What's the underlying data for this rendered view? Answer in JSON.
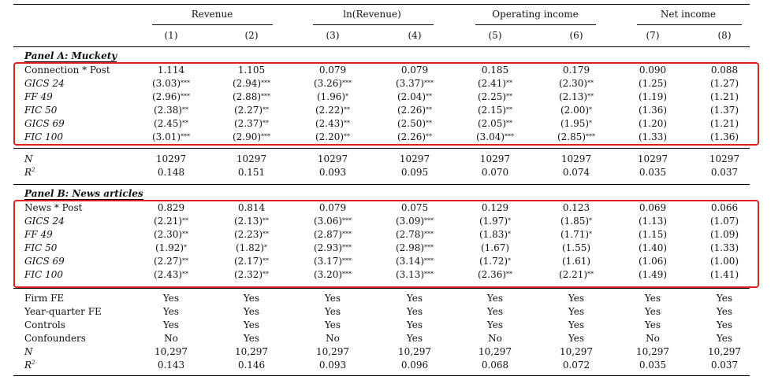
{
  "groups": [
    "Revenue",
    "ln(Revenue)",
    "Operating income",
    "Net income"
  ],
  "col_numbers": [
    "(1)",
    "(2)",
    "(3)",
    "(4)",
    "(5)",
    "(6)",
    "(7)",
    "(8)"
  ],
  "panel_a": {
    "title": "Panel A: Muckety",
    "rows": [
      {
        "label": "Connection * Post",
        "italic": false,
        "cells": [
          "1.114",
          "1.105",
          "0.079",
          "0.079",
          "0.185",
          "0.179",
          "0.090",
          "0.088"
        ],
        "stars": [
          "",
          "",
          "",
          "",
          "",
          "",
          "",
          ""
        ]
      },
      {
        "label": "GICS 24",
        "italic": true,
        "cells": [
          "(3.03)",
          "(2.94)",
          "(3.26)",
          "(3.37)",
          "(2.41)",
          "(2.30)",
          "(1.25)",
          "(1.27)"
        ],
        "stars": [
          "***",
          "***",
          "***",
          "***",
          "**",
          "**",
          "",
          ""
        ]
      },
      {
        "label": "FF 49",
        "italic": true,
        "cells": [
          "(2.96)",
          "(2.88)",
          "(1.96)",
          "(2.04)",
          "(2.25)",
          "(2.13)",
          "(1.19)",
          "(1.21)"
        ],
        "stars": [
          "***",
          "***",
          "*",
          "**",
          "**",
          "**",
          "",
          ""
        ]
      },
      {
        "label": "FIC 50",
        "italic": true,
        "cells": [
          "(2.38)",
          "(2.27)",
          "(2.22)",
          "(2.26)",
          "(2.15)",
          "(2.00)",
          "(1.36)",
          "(1.37)"
        ],
        "stars": [
          "**",
          "**",
          "**",
          "**",
          "**",
          "*",
          "",
          ""
        ]
      },
      {
        "label": "GICS 69",
        "italic": true,
        "cells": [
          "(2.45)",
          "(2.37)",
          "(2.43)",
          "(2.50)",
          "(2.05)",
          "(1.95)",
          "(1.20)",
          "(1.21)"
        ],
        "stars": [
          "**",
          "**",
          "**",
          "**",
          "**",
          "*",
          "",
          ""
        ]
      },
      {
        "label": "FIC 100",
        "italic": true,
        "cells": [
          "(3.01)",
          "(2.90)",
          "(2.20)",
          "(2.26)",
          "(3.04)",
          "(2.85)",
          "(1.33)",
          "(1.36)"
        ],
        "stars": [
          "***",
          "***",
          "**",
          "**",
          "***",
          "***",
          "",
          ""
        ]
      }
    ],
    "n_label": "N",
    "n_values": [
      "10297",
      "10297",
      "10297",
      "10297",
      "10297",
      "10297",
      "10297",
      "10297"
    ],
    "r2_label": "R",
    "r2_sup": "2",
    "r2_values": [
      "0.148",
      "0.151",
      "0.093",
      "0.095",
      "0.070",
      "0.074",
      "0.035",
      "0.037"
    ]
  },
  "panel_b": {
    "title": "Panel B: News articles",
    "rows": [
      {
        "label": "News * Post",
        "italic": false,
        "cells": [
          "0.829",
          "0.814",
          "0.079",
          "0.075",
          "0.129",
          "0.123",
          "0.069",
          "0.066"
        ],
        "stars": [
          "",
          "",
          "",
          "",
          "",
          "",
          "",
          ""
        ]
      },
      {
        "label": "GICS 24",
        "italic": true,
        "cells": [
          "(2.21)",
          "(2.13)",
          "(3.06)",
          "(3.09)",
          "(1.97)",
          "(1.85)",
          "(1.13)",
          "(1.07)"
        ],
        "stars": [
          "**",
          "**",
          "***",
          "***",
          "*",
          "*",
          "",
          ""
        ]
      },
      {
        "label": "FF 49",
        "italic": true,
        "cells": [
          "(2.30)",
          "(2.23)",
          "(2.87)",
          "(2.78)",
          "(1.83)",
          "(1.71)",
          "(1.15)",
          "(1.09)"
        ],
        "stars": [
          "**",
          "**",
          "***",
          "***",
          "*",
          "*",
          "",
          ""
        ]
      },
      {
        "label": "FIC 50",
        "italic": true,
        "cells": [
          "(1.92)",
          "(1.82)",
          "(2.93)",
          "(2.98)",
          "(1.67)",
          "(1.55)",
          "(1.40)",
          "(1.33)"
        ],
        "stars": [
          "*",
          "*",
          "***",
          "***",
          "",
          "",
          "",
          ""
        ]
      },
      {
        "label": "GICS 69",
        "italic": true,
        "cells": [
          "(2.27)",
          "(2.17)",
          "(3.17)",
          "(3.14)",
          "(1.72)",
          "(1.61)",
          "(1.06)",
          "(1.00)"
        ],
        "stars": [
          "**",
          "**",
          "***",
          "***",
          "*",
          "",
          "",
          ""
        ]
      },
      {
        "label": "FIC 100",
        "italic": true,
        "cells": [
          "(2.43)",
          "(2.32)",
          "(3.20)",
          "(3.13)",
          "(2.36)",
          "(2.21)",
          "(1.49)",
          "(1.41)"
        ],
        "stars": [
          "**",
          "**",
          "***",
          "***",
          "**",
          "**",
          "",
          ""
        ]
      }
    ]
  },
  "footer": [
    {
      "label": "Firm FE",
      "cells": [
        "Yes",
        "Yes",
        "Yes",
        "Yes",
        "Yes",
        "Yes",
        "Yes",
        "Yes"
      ]
    },
    {
      "label": "Year-quarter FE",
      "cells": [
        "Yes",
        "Yes",
        "Yes",
        "Yes",
        "Yes",
        "Yes",
        "Yes",
        "Yes"
      ]
    },
    {
      "label": "Controls",
      "cells": [
        "Yes",
        "Yes",
        "Yes",
        "Yes",
        "Yes",
        "Yes",
        "Yes",
        "Yes"
      ]
    },
    {
      "label": "Confounders",
      "cells": [
        "No",
        "Yes",
        "No",
        "Yes",
        "No",
        "Yes",
        "No",
        "Yes"
      ]
    },
    {
      "label": "N",
      "italic": true,
      "cells": [
        "10,297",
        "10,297",
        "10,297",
        "10,297",
        "10,297",
        "10,297",
        "10,297",
        "10,297"
      ]
    },
    {
      "label": "R",
      "italic": true,
      "sup": "2",
      "cells": [
        "0.143",
        "0.146",
        "0.093",
        "0.096",
        "0.068",
        "0.072",
        "0.035",
        "0.037"
      ]
    }
  ],
  "highlight_color": "#e02020"
}
